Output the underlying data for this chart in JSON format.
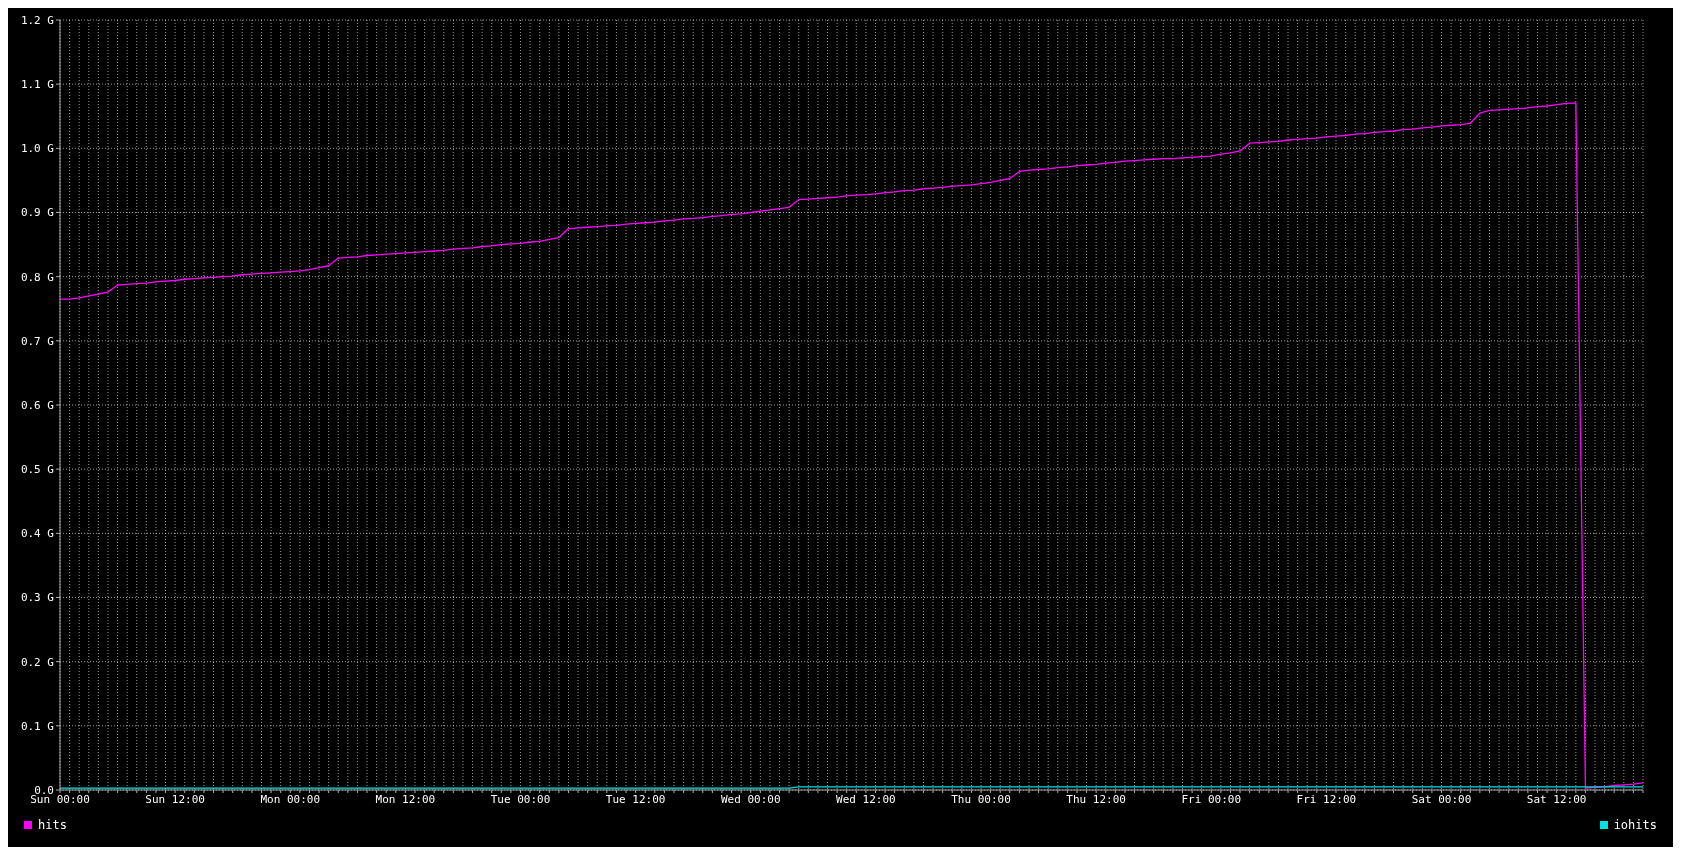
{
  "chart_data": {
    "type": "line",
    "categories": [
      "Sun 00:00",
      null,
      null,
      null,
      null,
      null,
      null,
      null,
      null,
      null,
      null,
      null,
      "Sun 12:00",
      null,
      null,
      null,
      null,
      null,
      null,
      null,
      null,
      null,
      null,
      null,
      "Mon 00:00",
      null,
      null,
      null,
      null,
      null,
      null,
      null,
      null,
      null,
      null,
      null,
      "Mon 12:00",
      null,
      null,
      null,
      null,
      null,
      null,
      null,
      null,
      null,
      null,
      null,
      "Tue 00:00",
      null,
      null,
      null,
      null,
      null,
      null,
      null,
      null,
      null,
      null,
      null,
      "Tue 12:00",
      null,
      null,
      null,
      null,
      null,
      null,
      null,
      null,
      null,
      null,
      null,
      "Wed 00:00",
      null,
      null,
      null,
      null,
      null,
      null,
      null,
      null,
      null,
      null,
      null,
      "Wed 12:00",
      null,
      null,
      null,
      null,
      null,
      null,
      null,
      null,
      null,
      null,
      null,
      "Thu 00:00",
      null,
      null,
      null,
      null,
      null,
      null,
      null,
      null,
      null,
      null,
      null,
      "Thu 12:00",
      null,
      null,
      null,
      null,
      null,
      null,
      null,
      null,
      null,
      null,
      null,
      "Fri 00:00",
      null,
      null,
      null,
      null,
      null,
      null,
      null,
      null,
      null,
      null,
      null,
      "Fri 12:00",
      null,
      null,
      null,
      null,
      null,
      null,
      null,
      null,
      null,
      null,
      null,
      "Sat 00:00",
      null,
      null,
      null,
      null,
      null,
      null,
      null,
      null,
      null,
      null,
      null,
      "Sat 12:00",
      null,
      null,
      null,
      null,
      null,
      null,
      null,
      null,
      null
    ],
    "ylim": [
      0,
      1.2
    ],
    "yticks": [
      {
        "value": 0,
        "label": "0.0"
      },
      {
        "value": 0.1,
        "label": "0.1 G"
      },
      {
        "value": 0.2,
        "label": "0.2 G"
      },
      {
        "value": 0.3,
        "label": "0.3 G"
      },
      {
        "value": 0.4,
        "label": "0.4 G"
      },
      {
        "value": 0.5,
        "label": "0.5 G"
      },
      {
        "value": 0.6,
        "label": "0.6 G"
      },
      {
        "value": 0.7,
        "label": "0.7 G"
      },
      {
        "value": 0.8,
        "label": "0.8 G"
      },
      {
        "value": 0.9,
        "label": "0.9 G"
      },
      {
        "value": 1.0,
        "label": "1.0 G"
      },
      {
        "value": 1.1,
        "label": "1.1 G"
      },
      {
        "value": 1.2,
        "label": "1.2 G"
      }
    ],
    "grid": true,
    "legend": "bottom",
    "marker": "none",
    "line_style": "solid",
    "series": [
      {
        "name": "hits",
        "color": "#ff00ff",
        "values": [
          0.765,
          0.765,
          0.767,
          0.77,
          0.773,
          0.776,
          0.787,
          0.788,
          0.789,
          0.79,
          0.792,
          0.793,
          0.794,
          0.796,
          0.797,
          0.798,
          0.799,
          0.8,
          0.801,
          0.803,
          0.804,
          0.805,
          0.806,
          0.807,
          0.808,
          0.809,
          0.811,
          0.814,
          0.817,
          0.829,
          0.83,
          0.831,
          0.833,
          0.834,
          0.835,
          0.836,
          0.837,
          0.838,
          0.839,
          0.84,
          0.841,
          0.843,
          0.844,
          0.845,
          0.847,
          0.848,
          0.85,
          0.851,
          0.852,
          0.854,
          0.855,
          0.858,
          0.861,
          0.875,
          0.876,
          0.877,
          0.878,
          0.879,
          0.88,
          0.882,
          0.883,
          0.884,
          0.885,
          0.887,
          0.888,
          0.89,
          0.891,
          0.892,
          0.894,
          0.895,
          0.897,
          0.898,
          0.9,
          0.902,
          0.904,
          0.906,
          0.908,
          0.92,
          0.921,
          0.922,
          0.923,
          0.924,
          0.926,
          0.927,
          0.928,
          0.929,
          0.931,
          0.932,
          0.934,
          0.935,
          0.937,
          0.938,
          0.939,
          0.941,
          0.942,
          0.943,
          0.945,
          0.947,
          0.95,
          0.953,
          0.964,
          0.966,
          0.967,
          0.968,
          0.97,
          0.971,
          0.973,
          0.974,
          0.975,
          0.977,
          0.978,
          0.98,
          0.981,
          0.982,
          0.983,
          0.984,
          0.984,
          0.985,
          0.986,
          0.987,
          0.988,
          0.991,
          0.993,
          0.996,
          1.008,
          1.009,
          1.01,
          1.011,
          1.013,
          1.014,
          1.015,
          1.016,
          1.018,
          1.019,
          1.02,
          1.022,
          1.023,
          1.025,
          1.026,
          1.027,
          1.029,
          1.03,
          1.032,
          1.033,
          1.035,
          1.036,
          1.037,
          1.039,
          1.055,
          1.059,
          1.06,
          1.061,
          1.062,
          1.063,
          1.065,
          1.066,
          1.068,
          1.07,
          1.071,
          0.003,
          0.004,
          0.005,
          0.007,
          0.008,
          0.009,
          0.011
        ]
      },
      {
        "name": "iohits",
        "color": "#00e0e0",
        "values": [
          0.003,
          0.003,
          0.003,
          0.003,
          0.003,
          0.003,
          0.003,
          0.003,
          0.003,
          0.003,
          0.003,
          0.003,
          0.003,
          0.003,
          0.003,
          0.003,
          0.003,
          0.003,
          0.003,
          0.003,
          0.003,
          0.003,
          0.003,
          0.003,
          0.003,
          0.003,
          0.003,
          0.003,
          0.003,
          0.003,
          0.003,
          0.003,
          0.003,
          0.003,
          0.003,
          0.003,
          0.003,
          0.003,
          0.003,
          0.003,
          0.003,
          0.003,
          0.003,
          0.003,
          0.003,
          0.003,
          0.003,
          0.003,
          0.003,
          0.003,
          0.003,
          0.003,
          0.003,
          0.003,
          0.003,
          0.003,
          0.003,
          0.003,
          0.003,
          0.003,
          0.003,
          0.003,
          0.003,
          0.003,
          0.003,
          0.003,
          0.003,
          0.003,
          0.003,
          0.003,
          0.003,
          0.003,
          0.003,
          0.003,
          0.003,
          0.003,
          0.003,
          0.005,
          0.005,
          0.005,
          0.005,
          0.005,
          0.005,
          0.005,
          0.005,
          0.005,
          0.005,
          0.005,
          0.005,
          0.005,
          0.005,
          0.005,
          0.005,
          0.005,
          0.005,
          0.005,
          0.005,
          0.005,
          0.005,
          0.005,
          0.005,
          0.005,
          0.005,
          0.005,
          0.005,
          0.005,
          0.005,
          0.005,
          0.005,
          0.005,
          0.005,
          0.005,
          0.005,
          0.005,
          0.005,
          0.005,
          0.005,
          0.005,
          0.005,
          0.005,
          0.005,
          0.005,
          0.005,
          0.005,
          0.005,
          0.005,
          0.005,
          0.005,
          0.005,
          0.005,
          0.005,
          0.005,
          0.005,
          0.005,
          0.005,
          0.005,
          0.005,
          0.005,
          0.005,
          0.005,
          0.005,
          0.005,
          0.005,
          0.005,
          0.005,
          0.005,
          0.005,
          0.005,
          0.005,
          0.005,
          0.005,
          0.005,
          0.005,
          0.005,
          0.005,
          0.005,
          0.005,
          0.005,
          0.005,
          0.005,
          0.005,
          0.005,
          0.005,
          0.005,
          0.005,
          0.005
        ]
      }
    ]
  }
}
